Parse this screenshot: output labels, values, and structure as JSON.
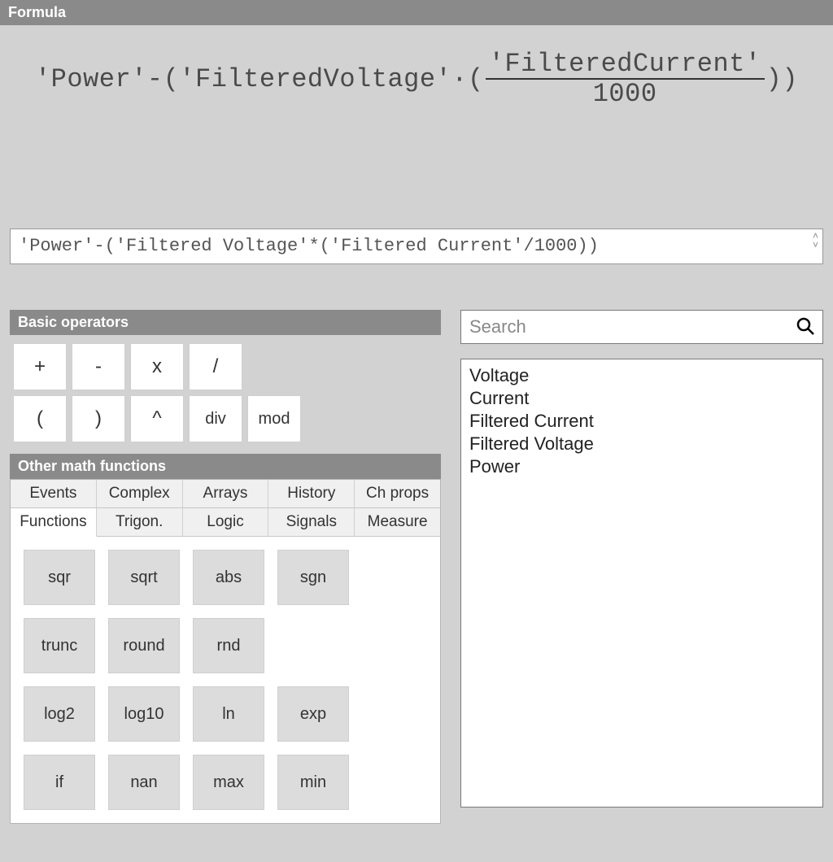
{
  "colors": {
    "page_bg": "#d2d2d2",
    "header_bg": "#8a8a8a",
    "header_text": "#ffffff",
    "button_bg": "#ffffff",
    "func_button_bg": "#dcdcdc",
    "tab_inactive_bg": "#f0f0f0",
    "border": "#9a9a9a",
    "text": "#333333"
  },
  "formula_panel_title": "Formula",
  "formula_render": {
    "pre": "'Power'-('FilteredVoltage'·(",
    "numerator": "'FilteredCurrent'",
    "denominator": "1000",
    "post": "))"
  },
  "formula_input_value": "'Power'-('Filtered Voltage'*('Filtered Current'/1000))",
  "basic_operators_title": "Basic operators",
  "operators_row1": [
    "+",
    "-",
    "x",
    "/"
  ],
  "operators_row2": [
    "(",
    ")",
    "^",
    "div",
    "mod"
  ],
  "other_math_title": "Other math functions",
  "tabs_row1": [
    "Events",
    "Complex",
    "Arrays",
    "History",
    "Ch props"
  ],
  "tabs_row2": [
    "Functions",
    "Trigon.",
    "Logic",
    "Signals",
    "Measure"
  ],
  "active_tab": "Functions",
  "functions_grid": [
    [
      "sqr",
      "sqrt",
      "abs",
      "sgn"
    ],
    [
      "trunc",
      "round",
      "rnd",
      ""
    ],
    [
      "log2",
      "log10",
      "ln",
      "exp"
    ],
    [
      "if",
      "nan",
      "max",
      "min"
    ]
  ],
  "search_placeholder": "Search",
  "variables": [
    "Voltage",
    "Current",
    "Filtered Current",
    "Filtered Voltage",
    "Power"
  ]
}
